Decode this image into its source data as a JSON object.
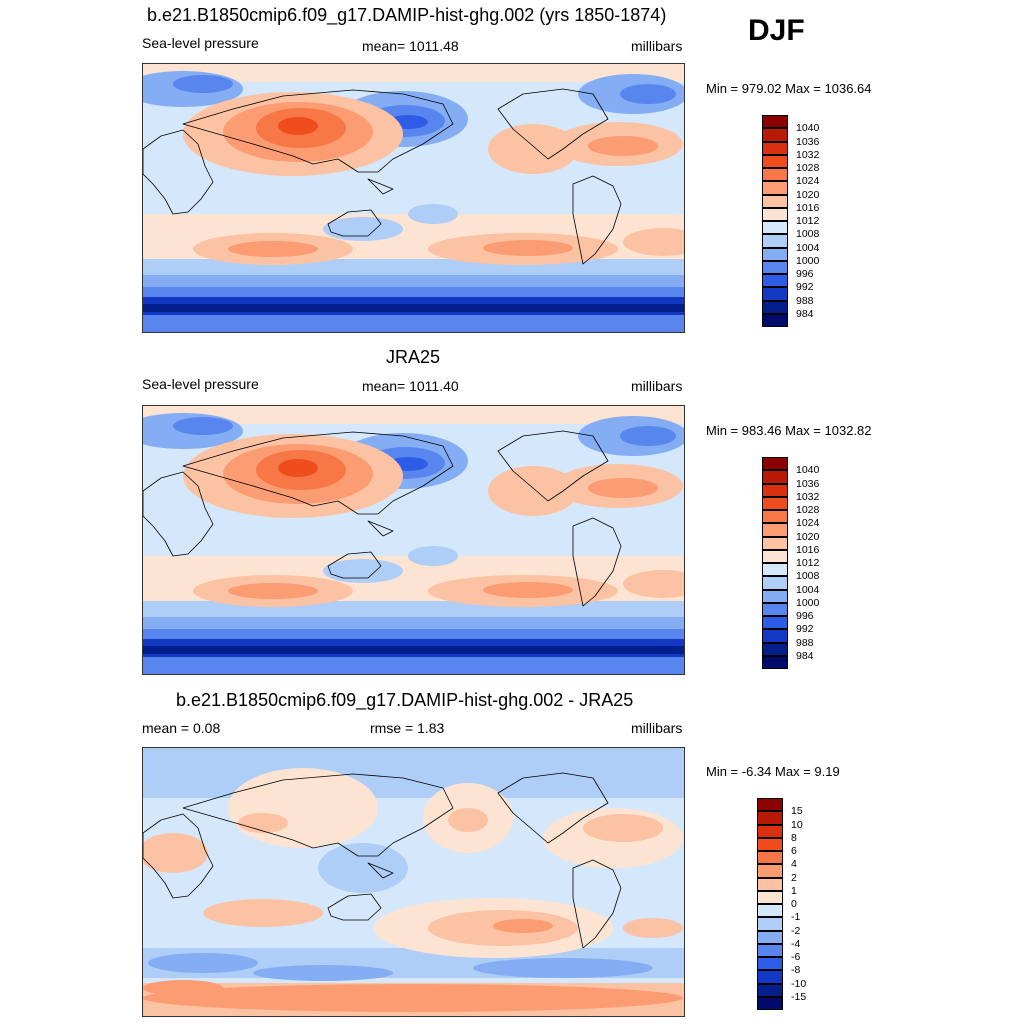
{
  "season": "DJF",
  "panels": [
    {
      "title": "b.e21.B1850cmip6.f09_g17.DAMIP-hist-ghg.002 (yrs 1850-1874)",
      "left": "Sea-level pressure",
      "center": "mean= 1011.48",
      "right": "millibars",
      "minmax": "Min = 979.02 Max = 1036.64",
      "colorbar_labels": [
        "1040",
        "1036",
        "1032",
        "1028",
        "1024",
        "1020",
        "1016",
        "1012",
        "1008",
        "1004",
        "1000",
        "996",
        "992",
        "988",
        "984"
      ]
    },
    {
      "title": "JRA25",
      "left": "Sea-level pressure",
      "center": "mean= 1011.40",
      "right": "millibars",
      "minmax": "Min = 983.46 Max = 1032.82",
      "colorbar_labels": [
        "1040",
        "1036",
        "1032",
        "1028",
        "1024",
        "1020",
        "1016",
        "1012",
        "1008",
        "1004",
        "1000",
        "996",
        "992",
        "988",
        "984"
      ]
    },
    {
      "title": "b.e21.B1850cmip6.f09_g17.DAMIP-hist-ghg.002 - JRA25",
      "left": "mean =   0.08",
      "center": "rmse =   1.83",
      "right": "millibars",
      "minmax": "Min =  -6.34 Max =   9.19",
      "colorbar_labels": [
        "15",
        "10",
        "8",
        "6",
        "4",
        "2",
        "1",
        "0",
        "-1",
        "-2",
        "-4",
        "-6",
        "-8",
        "-10",
        "-15"
      ]
    }
  ],
  "colors": {
    "scale": [
      "#8b0000",
      "#b81a05",
      "#d9300f",
      "#f04d1f",
      "#f77746",
      "#fb9c72",
      "#fcc2a4",
      "#fde4d2",
      "#d5e8fb",
      "#aecdf7",
      "#85adf3",
      "#5886ee",
      "#2f5ce6",
      "#1339c4",
      "#021f8c",
      "#000a6a"
    ],
    "outline": "#000000"
  }
}
